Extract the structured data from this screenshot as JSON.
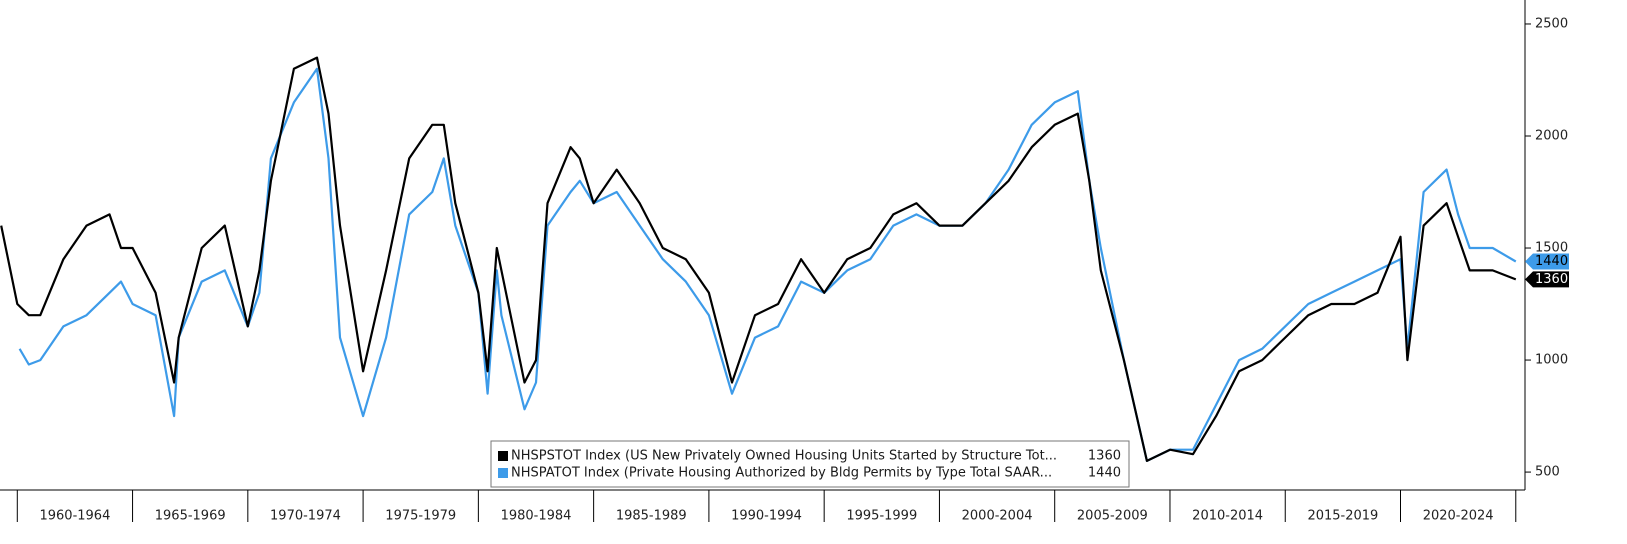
{
  "chart_data": {
    "type": "line",
    "series": [
      {
        "name": "NHSPSTOT Index (US New Privately Owned Housing Units Started by Structure Tot...",
        "last_label": "1360",
        "color": "#000000",
        "x": [
          1959.3,
          1960,
          1960.5,
          1961,
          1962,
          1963,
          1964,
          1964.5,
          1965,
          1966,
          1966.8,
          1967,
          1968,
          1969,
          1970,
          1970.5,
          1971,
          1972,
          1973,
          1973.5,
          1974,
          1975,
          1976,
          1977,
          1978,
          1978.5,
          1979,
          1980,
          1980.4,
          1980.8,
          1981,
          1982,
          1982.5,
          1983,
          1984,
          1984.4,
          1985,
          1986,
          1987,
          1988,
          1989,
          1990,
          1991,
          1992,
          1993,
          1994,
          1995,
          1996,
          1997,
          1998,
          1999,
          2000,
          2001,
          2002,
          2003,
          2004,
          2005,
          2006,
          2006.5,
          2007,
          2008,
          2009,
          2010,
          2011,
          2012,
          2013,
          2014,
          2015,
          2016,
          2017,
          2018,
          2019,
          2020,
          2020.3,
          2021,
          2022,
          2022.5,
          2023,
          2024,
          2025
        ],
        "values": [
          1600,
          1250,
          1200,
          1200,
          1450,
          1600,
          1650,
          1500,
          1500,
          1300,
          900,
          1100,
          1500,
          1600,
          1150,
          1400,
          1800,
          2300,
          2350,
          2100,
          1600,
          950,
          1400,
          1900,
          2050,
          2050,
          1700,
          1300,
          950,
          1500,
          1400,
          900,
          1000,
          1700,
          1950,
          1900,
          1700,
          1850,
          1700,
          1500,
          1450,
          1300,
          900,
          1200,
          1250,
          1450,
          1300,
          1450,
          1500,
          1650,
          1700,
          1600,
          1600,
          1700,
          1800,
          1950,
          2050,
          2100,
          1800,
          1400,
          1000,
          550,
          600,
          580,
          750,
          950,
          1000,
          1100,
          1200,
          1250,
          1250,
          1300,
          1550,
          1000,
          1600,
          1700,
          1550,
          1400,
          1400,
          1360
        ]
      },
      {
        "name": "NHSPATOT Index (Private Housing Authorized by Bldg Permits by Type Total SAAR...",
        "last_label": "1440",
        "color": "#3d9be9",
        "x": [
          1960.1,
          1960.5,
          1961,
          1962,
          1963,
          1964,
          1964.5,
          1965,
          1966,
          1966.8,
          1967,
          1968,
          1969,
          1970,
          1970.5,
          1971,
          1972,
          1973,
          1973.5,
          1974,
          1975,
          1976,
          1977,
          1978,
          1978.5,
          1979,
          1980,
          1980.4,
          1980.8,
          1981,
          1982,
          1982.5,
          1983,
          1984,
          1984.4,
          1985,
          1986,
          1987,
          1988,
          1989,
          1990,
          1991,
          1992,
          1993,
          1994,
          1995,
          1996,
          1997,
          1998,
          1999,
          2000,
          2001,
          2002,
          2003,
          2004,
          2005,
          2006,
          2006.5,
          2007,
          2008,
          2009,
          2010,
          2011,
          2012,
          2013,
          2014,
          2015,
          2016,
          2017,
          2018,
          2019,
          2020,
          2020.3,
          2021,
          2022,
          2022.5,
          2023,
          2024,
          2025
        ],
        "values": [
          1050,
          980,
          1000,
          1150,
          1200,
          1300,
          1350,
          1250,
          1200,
          750,
          1100,
          1350,
          1400,
          1150,
          1300,
          1900,
          2150,
          2300,
          1900,
          1100,
          750,
          1100,
          1650,
          1750,
          1900,
          1600,
          1300,
          850,
          1400,
          1200,
          780,
          900,
          1600,
          1750,
          1800,
          1700,
          1750,
          1600,
          1450,
          1350,
          1200,
          850,
          1100,
          1150,
          1350,
          1300,
          1400,
          1450,
          1600,
          1650,
          1600,
          1600,
          1700,
          1850,
          2050,
          2150,
          2200,
          1800,
          1500,
          1000,
          550,
          600,
          600,
          800,
          1000,
          1050,
          1150,
          1250,
          1300,
          1350,
          1400,
          1450,
          1050,
          1750,
          1850,
          1650,
          1500,
          1500,
          1440
        ]
      }
    ],
    "periods": [
      {
        "start": 1960,
        "end": 1965,
        "label": "1960-1964"
      },
      {
        "start": 1965,
        "end": 1970,
        "label": "1965-1969"
      },
      {
        "start": 1970,
        "end": 1975,
        "label": "1970-1974"
      },
      {
        "start": 1975,
        "end": 1980,
        "label": "1975-1979"
      },
      {
        "start": 1980,
        "end": 1985,
        "label": "1980-1984"
      },
      {
        "start": 1985,
        "end": 1990,
        "label": "1985-1989"
      },
      {
        "start": 1990,
        "end": 1995,
        "label": "1990-1994"
      },
      {
        "start": 1995,
        "end": 2000,
        "label": "1995-1999"
      },
      {
        "start": 2000,
        "end": 2005,
        "label": "2000-2004"
      },
      {
        "start": 2005,
        "end": 2010,
        "label": "2005-2009"
      },
      {
        "start": 2010,
        "end": 2015,
        "label": "2010-2014"
      },
      {
        "start": 2015,
        "end": 2020,
        "label": "2015-2019"
      },
      {
        "start": 2020,
        "end": 2025,
        "label": "2020-2024"
      }
    ],
    "xlim": [
      1959.25,
      2025.4
    ],
    "ylim": [
      420,
      2607
    ],
    "yticks": [
      500,
      1000,
      1500,
      2000,
      2500
    ],
    "legend": "bottom-center"
  }
}
